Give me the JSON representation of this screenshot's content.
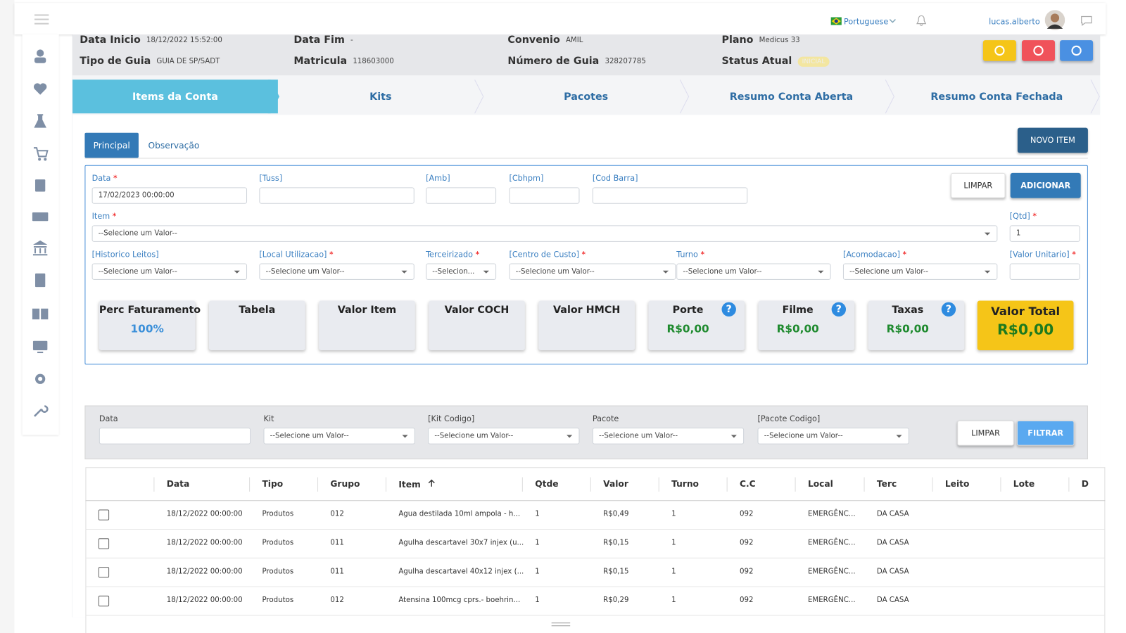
{
  "topbar": {
    "language": "Portuguese",
    "user": "lucas.alberto"
  },
  "header": {
    "fields": [
      {
        "label": "Data Inicio",
        "value": "18/12/2022 15:52:00"
      },
      {
        "label": "Data Fim",
        "value": "-"
      },
      {
        "label": "Convenio",
        "value": "AMIL"
      },
      {
        "label": "Plano",
        "value": "Medicus 33"
      },
      {
        "label": "Tipo de Guia",
        "value": "GUIA DE SP/SADT"
      },
      {
        "label": "Matricula",
        "value": "118603000"
      },
      {
        "label": "Número de Guia",
        "value": "328207785"
      },
      {
        "label": "Status Atual",
        "value": "INICIAL"
      }
    ]
  },
  "steps": [
    "Items da Conta",
    "Kits",
    "Pacotes",
    "Resumo Conta Aberta",
    "Resumo Conta Fechada"
  ],
  "tabs": [
    "Principal",
    "Observação"
  ],
  "new_item_button": "NOVO ITEM",
  "form": {
    "required_mark": "*",
    "fields": [
      {
        "label": "Data",
        "required": true,
        "kind": "input",
        "value": "17/02/2023 00:00:00"
      },
      {
        "label": "[Tuss]",
        "required": false,
        "kind": "input"
      },
      {
        "label": "[Amb]",
        "required": false,
        "kind": "input"
      },
      {
        "label": "[Cbhpm]",
        "required": false,
        "kind": "input"
      },
      {
        "label": "[Cod Barra]",
        "required": false,
        "kind": "input"
      },
      {
        "label": "Item",
        "required": true,
        "kind": "select",
        "value": "--Selecione um Valor--"
      },
      {
        "label": "[Qtd]",
        "required": true,
        "kind": "input",
        "value": "1"
      },
      {
        "label": "[Historico Leitos]",
        "required": false,
        "kind": "select",
        "value": "--Selecione um Valor--"
      },
      {
        "label": "[Local Utilizacao]",
        "required": true,
        "kind": "select",
        "value": "--Selecione um Valor--"
      },
      {
        "label": "Terceirizado",
        "required": true,
        "kind": "select",
        "value": "--Selecion..."
      },
      {
        "label": "[Centro de Custo]",
        "required": true,
        "kind": "select",
        "value": "--Selecione um Valor--"
      },
      {
        "label": "Turno",
        "required": true,
        "kind": "select",
        "value": "--Selecione um Valor--"
      },
      {
        "label": "[Acomodacao]",
        "required": true,
        "kind": "select",
        "value": "--Selecione um Valor--"
      },
      {
        "label": "[Valor Unitario]",
        "required": true,
        "kind": "input"
      }
    ],
    "buttons": [
      "LIMPAR",
      "ADICIONAR"
    ],
    "help_icon": "?",
    "cards": [
      {
        "label": "Perc Faturamento",
        "value": "100%"
      },
      {
        "label": "Tabela"
      },
      {
        "label": "Valor Item"
      },
      {
        "label": "Valor COCH"
      },
      {
        "label": "Valor HMCH"
      },
      {
        "label": "Porte",
        "value": "R$0,00",
        "help": true
      },
      {
        "label": "Filme",
        "value": "R$0,00",
        "help": true
      },
      {
        "label": "Taxas",
        "value": "R$0,00",
        "help": true
      },
      {
        "label": "Valor Total",
        "value": "R$0,00"
      }
    ]
  },
  "filter": {
    "fields": [
      {
        "label": "Data",
        "kind": "input"
      },
      {
        "label": "Kit",
        "kind": "select",
        "value": "--Selecione um Valor--"
      },
      {
        "label": "[Kit Codigo]",
        "kind": "select",
        "value": "--Selecione um Valor--"
      },
      {
        "label": "Pacote",
        "kind": "select",
        "value": "--Selecione um Valor--"
      },
      {
        "label": "[Pacote Codigo]",
        "kind": "select",
        "value": "--Selecione um Valor--"
      }
    ],
    "buttons": [
      "LIMPAR",
      "FILTRAR"
    ]
  },
  "table": {
    "columns": [
      "Data",
      "Tipo",
      "Grupo",
      "Item",
      "Qtde",
      "Valor",
      "Turno",
      "C.C",
      "Local",
      "Terc",
      "Leito",
      "Lote",
      "D"
    ],
    "rows": [
      [
        "18/12/2022 00:00:00",
        "Produtos",
        "012",
        "Agua destilada 10ml ampola - h...",
        "1",
        "R$0,49",
        "1",
        "092",
        "EMERGÊNC...",
        "DA CASA"
      ],
      [
        "18/12/2022 00:00:00",
        "Produtos",
        "011",
        "Agulha descartavel 30x7 injex (u...",
        "1",
        "R$0,15",
        "1",
        "092",
        "EMERGÊNC...",
        "DA CASA"
      ],
      [
        "18/12/2022 00:00:00",
        "Produtos",
        "011",
        "Agulha descartavel 40x12 injex (...",
        "1",
        "R$0,15",
        "1",
        "092",
        "EMERGÊNC...",
        "DA CASA"
      ],
      [
        "18/12/2022 00:00:00",
        "Produtos",
        "012",
        "Atensina 100mcg cprs.- boehrin...",
        "1",
        "R$0,29",
        "1",
        "092",
        "EMERGÊNC...",
        "DA CASA"
      ]
    ]
  }
}
